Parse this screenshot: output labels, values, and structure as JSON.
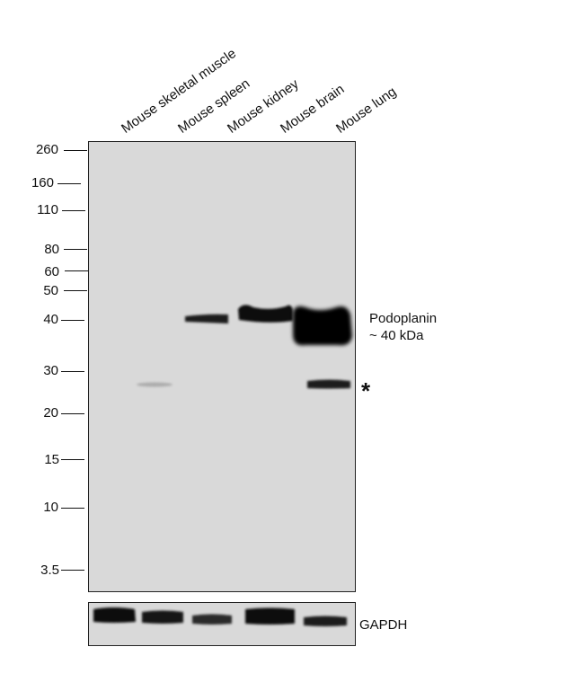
{
  "lanes": [
    "Mouse skeletal muscle",
    "Mouse spleen",
    "Mouse kidney",
    "Mouse brain",
    "Mouse lung"
  ],
  "mw_markers": [
    "260",
    "160",
    "110",
    "80",
    "60",
    "50",
    "40",
    "30",
    "20",
    "15",
    "10",
    "3.5"
  ],
  "target": {
    "name": "Podoplanin",
    "size": "~ 40 kDa"
  },
  "nonspecific_marker": "*",
  "loading_control": "GAPDH",
  "colors": {
    "membrane": "#d9d9d9",
    "band": "#0a0a0a",
    "frame": "#222222"
  }
}
